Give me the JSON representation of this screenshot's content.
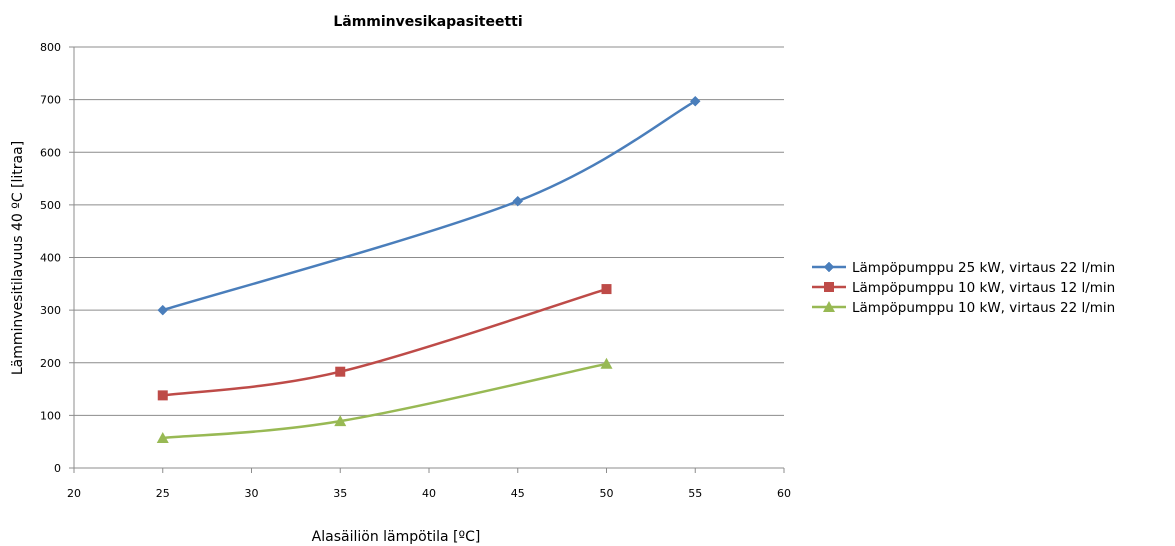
{
  "chart_data": {
    "type": "line",
    "title": "Lämminvesikapasiteetti",
    "xlabel": "Alasäiliön lämpötila [ºC]",
    "ylabel": "Lämminvesitilavuus 40 ºC [litraa]",
    "xlim": [
      20,
      60
    ],
    "ylim": [
      0,
      800
    ],
    "xticks": [
      20,
      25,
      30,
      35,
      40,
      45,
      50,
      55,
      60
    ],
    "yticks": [
      0,
      100,
      200,
      300,
      400,
      500,
      600,
      700,
      800
    ],
    "grid": true,
    "legend_position": "right",
    "series": [
      {
        "name": "Lämpöpumppu 25 kW, virtaus 22 l/min",
        "color": "#4a7ebb",
        "marker": "diamond",
        "points": [
          [
            25,
            300
          ],
          [
            45,
            507
          ],
          [
            55,
            697
          ]
        ]
      },
      {
        "name": "Lämpöpumppu 10 kW, virtaus 12 l/min",
        "color": "#be4b48",
        "marker": "square",
        "points": [
          [
            25,
            138
          ],
          [
            35,
            183
          ],
          [
            50,
            340
          ]
        ]
      },
      {
        "name": "Lämpöpumppu 10 kW, virtaus 22 l/min",
        "color": "#98b954",
        "marker": "triangle",
        "points": [
          [
            25,
            57
          ],
          [
            35,
            89
          ],
          [
            50,
            198
          ]
        ]
      }
    ]
  }
}
